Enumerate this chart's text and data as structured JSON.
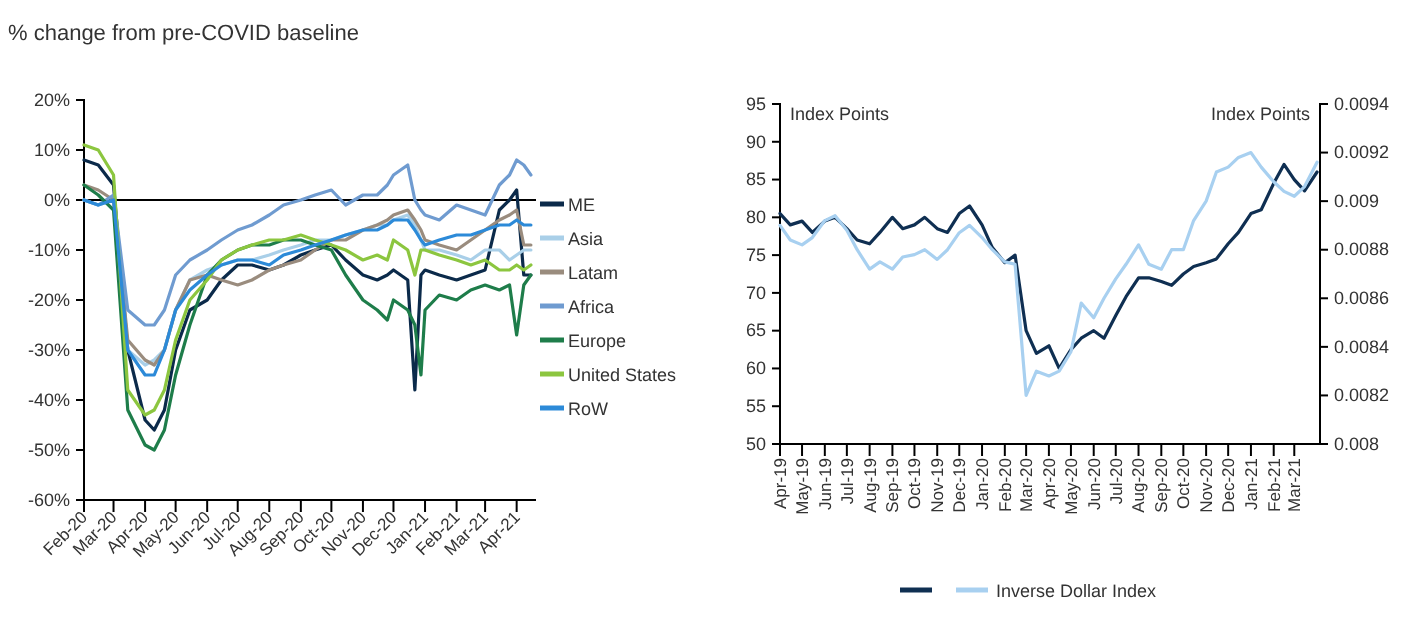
{
  "chart_data": [
    {
      "type": "line",
      "title": "% change from pre-COVID baseline",
      "x": [
        "2020-02-01",
        "2020-02-15",
        "2020-03-01",
        "2020-03-15",
        "2020-04-01",
        "2020-04-10",
        "2020-04-20",
        "2020-05-01",
        "2020-05-15",
        "2020-06-01",
        "2020-06-15",
        "2020-07-01",
        "2020-07-15",
        "2020-08-01",
        "2020-08-15",
        "2020-09-01",
        "2020-09-15",
        "2020-10-01",
        "2020-10-15",
        "2020-11-01",
        "2020-11-15",
        "2020-11-25",
        "2020-12-01",
        "2020-12-15",
        "2020-12-22",
        "2020-12-28",
        "2021-01-01",
        "2021-01-15",
        "2021-02-01",
        "2021-02-15",
        "2021-03-01",
        "2021-03-15",
        "2021-03-25",
        "2021-04-01",
        "2021-04-08",
        "2021-04-15"
      ],
      "series": [
        {
          "name": "ME",
          "color": "#0b2a4a",
          "values": [
            8,
            7,
            3,
            -30,
            -44,
            -46,
            -42,
            -30,
            -22,
            -20,
            -16,
            -13,
            -13,
            -14,
            -13,
            -11,
            -10,
            -9,
            -12,
            -15,
            -16,
            -15,
            -14,
            -16,
            -38,
            -15,
            -14,
            -15,
            -16,
            -15,
            -14,
            -2,
            0,
            2,
            -15,
            -15
          ]
        },
        {
          "name": "Asia",
          "color": "#a9cfe8",
          "values": [
            0,
            -1,
            0,
            -30,
            -33,
            -32,
            -30,
            -22,
            -16,
            -14,
            -13,
            -12,
            -12,
            -11,
            -10,
            -9,
            -8,
            -8,
            -7,
            -6,
            -5,
            -5,
            -4,
            -3,
            -5,
            -8,
            -10,
            -10,
            -11,
            -12,
            -10,
            -10,
            -12,
            -11,
            -10,
            -10
          ]
        },
        {
          "name": "Latam",
          "color": "#9a8c7e",
          "values": [
            3,
            2,
            0,
            -28,
            -32,
            -33,
            -30,
            -22,
            -16,
            -15,
            -16,
            -17,
            -16,
            -14,
            -13,
            -12,
            -10,
            -8,
            -8,
            -6,
            -5,
            -4,
            -3,
            -2,
            -4,
            -6,
            -8,
            -9,
            -10,
            -8,
            -6,
            -4,
            -3,
            -2,
            -9,
            -9
          ]
        },
        {
          "name": "Africa",
          "color": "#6f9bd0",
          "values": [
            0,
            -1,
            1,
            -22,
            -25,
            -25,
            -22,
            -15,
            -12,
            -10,
            -8,
            -6,
            -5,
            -3,
            -1,
            0,
            1,
            2,
            -1,
            1,
            1,
            3,
            5,
            7,
            0,
            -2,
            -3,
            -4,
            -1,
            -2,
            -3,
            3,
            5,
            8,
            7,
            5
          ]
        },
        {
          "name": "Europe",
          "color": "#1e7d4a",
          "values": [
            3,
            1,
            -2,
            -42,
            -49,
            -50,
            -46,
            -35,
            -25,
            -15,
            -12,
            -10,
            -9,
            -9,
            -8,
            -8,
            -9,
            -10,
            -15,
            -20,
            -22,
            -24,
            -20,
            -22,
            -25,
            -35,
            -22,
            -19,
            -20,
            -18,
            -17,
            -18,
            -17,
            -27,
            -17,
            -15
          ]
        },
        {
          "name": "United States",
          "color": "#8cc63f",
          "values": [
            11,
            10,
            5,
            -38,
            -43,
            -42,
            -38,
            -28,
            -20,
            -16,
            -12,
            -10,
            -9,
            -8,
            -8,
            -7,
            -8,
            -9,
            -10,
            -12,
            -11,
            -12,
            -8,
            -10,
            -15,
            -10,
            -10,
            -11,
            -12,
            -13,
            -12,
            -14,
            -14,
            -13,
            -14,
            -13
          ]
        },
        {
          "name": "RoW",
          "color": "#2c8ad8",
          "values": [
            0,
            -1,
            0,
            -30,
            -35,
            -35,
            -30,
            -22,
            -18,
            -15,
            -13,
            -12,
            -12,
            -13,
            -11,
            -10,
            -9,
            -8,
            -7,
            -6,
            -6,
            -5,
            -4,
            -4,
            -6,
            -8,
            -9,
            -8,
            -7,
            -7,
            -6,
            -5,
            -5,
            -4,
            -5,
            -5
          ]
        }
      ],
      "xlim": [
        "2020-02-01",
        "2021-04-20"
      ],
      "xticks": [
        {
          "value": "2020-02-01",
          "label": "Feb-20"
        },
        {
          "value": "2020-03-01",
          "label": "Mar-20"
        },
        {
          "value": "2020-04-01",
          "label": "Apr-20"
        },
        {
          "value": "2020-05-01",
          "label": "May-20"
        },
        {
          "value": "2020-06-01",
          "label": "Jun-20"
        },
        {
          "value": "2020-07-01",
          "label": "Jul-20"
        },
        {
          "value": "2020-08-01",
          "label": "Aug-20"
        },
        {
          "value": "2020-09-01",
          "label": "Sep-20"
        },
        {
          "value": "2020-10-01",
          "label": "Oct-20"
        },
        {
          "value": "2020-11-01",
          "label": "Nov-20"
        },
        {
          "value": "2020-12-01",
          "label": "Dec-20"
        },
        {
          "value": "2021-01-01",
          "label": "Jan-21"
        },
        {
          "value": "2021-02-01",
          "label": "Feb-21"
        },
        {
          "value": "2021-03-01",
          "label": "Mar-21"
        },
        {
          "value": "2021-04-01",
          "label": "Apr-21"
        }
      ],
      "ylim": [
        -60,
        20
      ],
      "yticks": [
        {
          "value": -60,
          "label": "-60%"
        },
        {
          "value": -50,
          "label": "-50%"
        },
        {
          "value": -40,
          "label": "-40%"
        },
        {
          "value": -30,
          "label": "-30%"
        },
        {
          "value": -20,
          "label": "-20%"
        },
        {
          "value": -10,
          "label": "-10%"
        },
        {
          "value": 0,
          "label": "0%"
        },
        {
          "value": 10,
          "label": "10%"
        },
        {
          "value": 20,
          "label": "20%"
        }
      ],
      "ref_lines": [
        {
          "axis": "y",
          "value": 0,
          "color": "#000000"
        }
      ],
      "legend": "right",
      "grid": false
    },
    {
      "type": "line",
      "ylabel": "Index Points",
      "y2label": "Index Points",
      "x": [
        "2019-04-01",
        "2019-04-15",
        "2019-05-01",
        "2019-05-15",
        "2019-06-01",
        "2019-06-15",
        "2019-07-01",
        "2019-07-15",
        "2019-08-01",
        "2019-08-15",
        "2019-09-01",
        "2019-09-15",
        "2019-10-01",
        "2019-10-15",
        "2019-11-01",
        "2019-11-15",
        "2019-12-01",
        "2019-12-15",
        "2020-01-01",
        "2020-01-15",
        "2020-02-01",
        "2020-02-15",
        "2020-03-01",
        "2020-03-15",
        "2020-04-01",
        "2020-04-15",
        "2020-05-01",
        "2020-05-15",
        "2020-06-01",
        "2020-06-15",
        "2020-07-01",
        "2020-07-15",
        "2020-08-01",
        "2020-08-15",
        "2020-09-01",
        "2020-09-15",
        "2020-10-01",
        "2020-10-15",
        "2020-11-01",
        "2020-11-15",
        "2020-12-01",
        "2020-12-15",
        "2021-01-01",
        "2021-01-15",
        "2021-02-01",
        "2021-02-15",
        "2021-03-01",
        "2021-03-15",
        "2021-04-01"
      ],
      "series": [
        {
          "color": "#0f2f52",
          "values": [
            80.5,
            79,
            79.5,
            78,
            79.5,
            80,
            78.5,
            77,
            76.5,
            78,
            80,
            78.5,
            79,
            80,
            78.5,
            78,
            80.5,
            81.5,
            79,
            76,
            74,
            75,
            65,
            62,
            63,
            60,
            62.5,
            64,
            65,
            64,
            67,
            69.5,
            72,
            72,
            71.5,
            71,
            72.5,
            73.5,
            74,
            74.5,
            76.5,
            78,
            80.5,
            81,
            84.5,
            87,
            85,
            83.5,
            86
          ]
        },
        {
          "name": "Inverse Dollar Index",
          "color": "#a8d0f0",
          "axis": "y2",
          "values": [
            0.0089,
            0.00884,
            0.00882,
            0.00885,
            0.00892,
            0.00894,
            0.00888,
            0.0088,
            0.00872,
            0.00875,
            0.00872,
            0.00877,
            0.00878,
            0.0088,
            0.00876,
            0.0088,
            0.00887,
            0.0089,
            0.00885,
            0.0088,
            0.00875,
            0.00874,
            0.0082,
            0.0083,
            0.00828,
            0.0083,
            0.00838,
            0.00858,
            0.00852,
            0.0086,
            0.00868,
            0.00874,
            0.00882,
            0.00874,
            0.00872,
            0.0088,
            0.0088,
            0.00892,
            0.009,
            0.00912,
            0.00914,
            0.00918,
            0.0092,
            0.00914,
            0.00908,
            0.00904,
            0.00902,
            0.00906,
            0.00916
          ]
        }
      ],
      "xlim": [
        "2019-04-01",
        "2021-04-05"
      ],
      "xticks": [
        {
          "value": "2019-04-01",
          "label": "Apr-19"
        },
        {
          "value": "2019-05-01",
          "label": "May-19"
        },
        {
          "value": "2019-06-01",
          "label": "Jun-19"
        },
        {
          "value": "2019-07-01",
          "label": "Jul-19"
        },
        {
          "value": "2019-08-01",
          "label": "Aug-19"
        },
        {
          "value": "2019-09-01",
          "label": "Sep-19"
        },
        {
          "value": "2019-10-01",
          "label": "Oct-19"
        },
        {
          "value": "2019-11-01",
          "label": "Nov-19"
        },
        {
          "value": "2019-12-01",
          "label": "Dec-19"
        },
        {
          "value": "2020-01-01",
          "label": "Jan-20"
        },
        {
          "value": "2020-02-01",
          "label": "Feb-20"
        },
        {
          "value": "2020-03-01",
          "label": "Mar-20"
        },
        {
          "value": "2020-04-01",
          "label": "Apr-20"
        },
        {
          "value": "2020-05-01",
          "label": "May-20"
        },
        {
          "value": "2020-06-01",
          "label": "Jun-20"
        },
        {
          "value": "2020-07-01",
          "label": "Jul-20"
        },
        {
          "value": "2020-08-01",
          "label": "Aug-20"
        },
        {
          "value": "2020-09-01",
          "label": "Sep-20"
        },
        {
          "value": "2020-10-01",
          "label": "Oct-20"
        },
        {
          "value": "2020-11-01",
          "label": "Nov-20"
        },
        {
          "value": "2020-12-01",
          "label": "Dec-20"
        },
        {
          "value": "2021-01-01",
          "label": "Jan-21"
        },
        {
          "value": "2021-02-01",
          "label": "Feb-21"
        },
        {
          "value": "2021-03-01",
          "label": "Mar-21"
        }
      ],
      "ylim": [
        50,
        95
      ],
      "yticks": [
        50,
        55,
        60,
        65,
        70,
        75,
        80,
        85,
        90,
        95
      ],
      "y2lim": [
        0.008,
        0.0094
      ],
      "y2ticks": [
        0.008,
        0.0082,
        0.0084,
        0.0086,
        0.0088,
        0.009,
        0.0092,
        0.0094
      ],
      "legend": "bottom",
      "grid": false
    }
  ]
}
